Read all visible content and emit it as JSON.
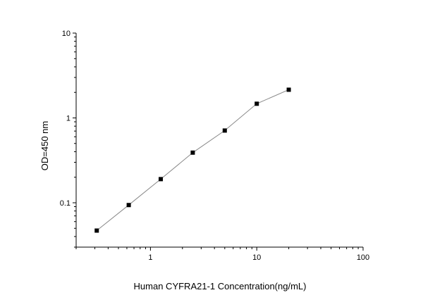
{
  "chart_data": {
    "type": "scatter",
    "title": "",
    "xlabel": "Human CYFRA21-1 Concentration(ng/mL)",
    "ylabel": "OD=450 nm",
    "xscale": "log",
    "yscale": "log",
    "xlim": [
      0.2,
      100
    ],
    "ylim": [
      0.03,
      10
    ],
    "xticks": [
      1,
      10,
      100
    ],
    "xtick_labels": [
      "1",
      "10",
      "100"
    ],
    "yticks": [
      0.1,
      1,
      10
    ],
    "ytick_labels": [
      "0.1",
      "1",
      "10"
    ],
    "grid": false,
    "legend": "none",
    "marker": "square",
    "line_color": "#888888",
    "marker_color": "#000000",
    "series": [
      {
        "x": [
          0.3125,
          0.625,
          1.25,
          2.5,
          5,
          10,
          20
        ],
        "y": [
          0.047,
          0.094,
          0.19,
          0.39,
          0.71,
          1.47,
          2.15
        ]
      }
    ]
  }
}
